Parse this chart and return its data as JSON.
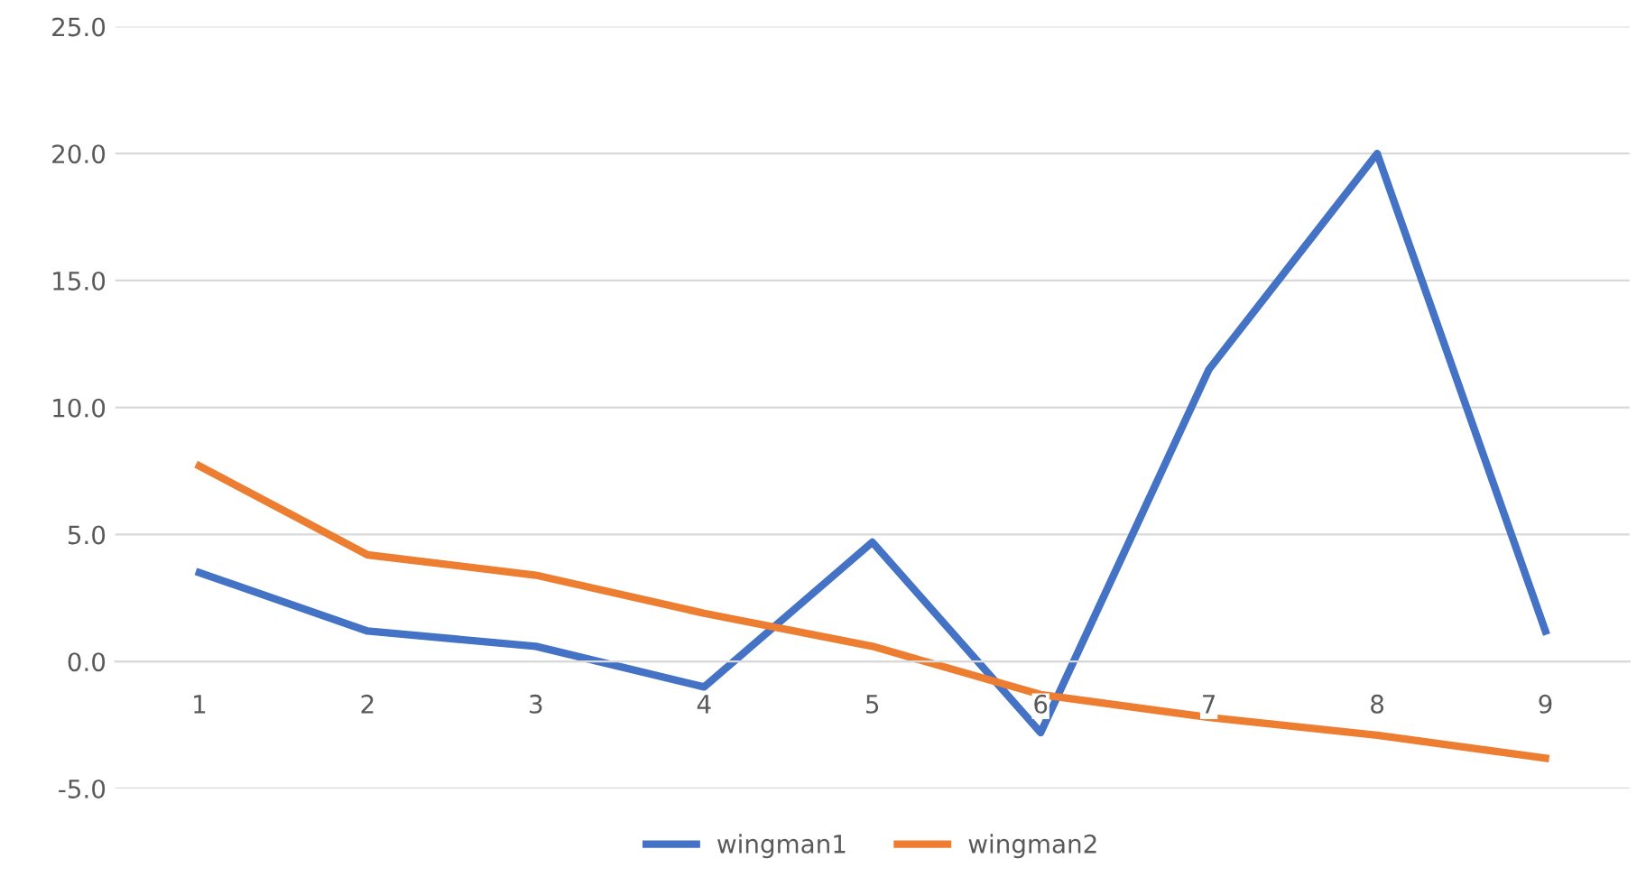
{
  "chart_data": {
    "type": "line",
    "categories": [
      "1",
      "2",
      "3",
      "4",
      "5",
      "6",
      "7",
      "8",
      "9"
    ],
    "series": [
      {
        "name": "wingman1",
        "color": "#4472c4",
        "values": [
          3.5,
          1.2,
          0.6,
          -1.0,
          4.7,
          -2.8,
          11.5,
          20.0,
          1.2
        ]
      },
      {
        "name": "wingman2",
        "color": "#ed7d31",
        "values": [
          7.7,
          4.2,
          3.4,
          1.9,
          0.6,
          -1.3,
          -2.2,
          -2.9,
          -3.8
        ]
      }
    ],
    "ylim": [
      -5,
      25
    ],
    "yticks": [
      {
        "value": -5,
        "label": "-5.0"
      },
      {
        "value": 0,
        "label": "0.0"
      },
      {
        "value": 5,
        "label": "5.0"
      },
      {
        "value": 10,
        "label": "10.0"
      },
      {
        "value": 15,
        "label": "15.0"
      },
      {
        "value": 20,
        "label": "20.0"
      },
      {
        "value": 25,
        "label": "25.0"
      }
    ],
    "grid": "y",
    "legend": "bottom",
    "marker": "none",
    "line_style": "solid"
  }
}
